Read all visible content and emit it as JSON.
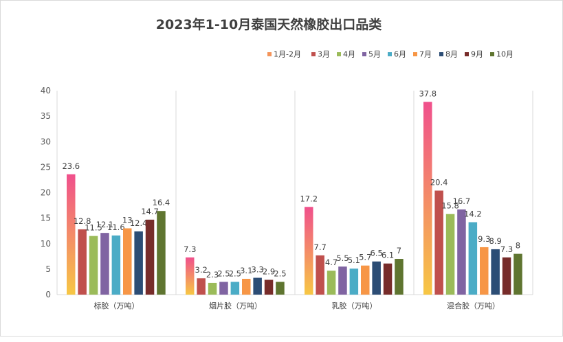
{
  "chart_data": {
    "type": "bar",
    "title": "2023年1-10月泰国天然橡胶出口品类",
    "categories": [
      "标胶（万吨）",
      "烟片胶（万吨）",
      "乳胶（万吨）",
      "混合胶（万吨）"
    ],
    "series": [
      {
        "name": "1月-2月",
        "color": "#f7c744",
        "color_top": "#f0508c",
        "values": [
          23.6,
          7.3,
          17.2,
          37.8
        ]
      },
      {
        "name": "3月",
        "color": "#c0504d",
        "values": [
          12.8,
          3.2,
          7.7,
          20.4
        ]
      },
      {
        "name": "4月",
        "color": "#9bbb59",
        "values": [
          11.5,
          2.3,
          4.7,
          15.8
        ]
      },
      {
        "name": "5月",
        "color": "#8064a2",
        "values": [
          12.1,
          2.5,
          5.5,
          16.7
        ]
      },
      {
        "name": "6月",
        "color": "#4bacc6",
        "values": [
          11.6,
          2.5,
          5.1,
          14.2
        ]
      },
      {
        "name": "7月",
        "color": "#f79646",
        "values": [
          13,
          3.1,
          5.7,
          9.3
        ]
      },
      {
        "name": "8月",
        "color": "#2c4d75",
        "values": [
          12.4,
          3.3,
          6.5,
          8.9
        ]
      },
      {
        "name": "9月",
        "color": "#772c2a",
        "values": [
          14.7,
          2.9,
          6.1,
          7.3
        ]
      },
      {
        "name": "10月",
        "color": "#5f7530",
        "values": [
          16.4,
          2.5,
          7,
          8
        ]
      }
    ],
    "ylim": [
      0,
      40
    ],
    "yticks": [
      0,
      5,
      10,
      15,
      20,
      25,
      30,
      35,
      40
    ],
    "grid": "vertical category separators",
    "legend": "top-right"
  }
}
